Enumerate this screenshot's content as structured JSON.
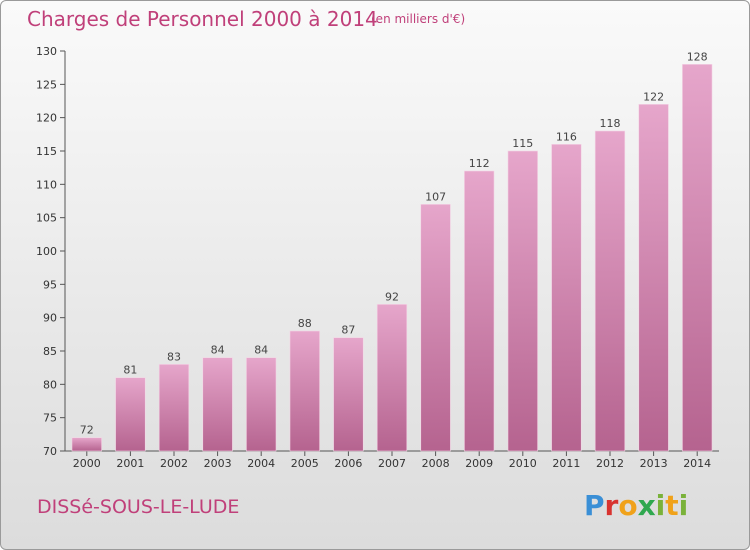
{
  "header": {
    "title": "Charges de Personnel 2000 à 2014",
    "subtitle": "(en milliers d'€)"
  },
  "footer": {
    "commune": "DISSé-SOUS-LE-LUDE",
    "logo": "Proxiti"
  },
  "colors": {
    "accent": "#c0407a",
    "bar_light": "#e6a6cb",
    "bar_dark": "#b5638f"
  },
  "chart_data": {
    "type": "bar",
    "title": "Charges de Personnel 2000 à 2014",
    "subtitle": "(en milliers d'€)",
    "xlabel": "",
    "ylabel": "",
    "categories": [
      "2000",
      "2001",
      "2002",
      "2003",
      "2004",
      "2005",
      "2006",
      "2007",
      "2008",
      "2009",
      "2010",
      "2011",
      "2012",
      "2013",
      "2014"
    ],
    "values": [
      72,
      81,
      83,
      84,
      84,
      88,
      87,
      92,
      107,
      112,
      115,
      116,
      118,
      122,
      128
    ],
    "ylim": [
      70,
      130
    ],
    "yticks": [
      70,
      75,
      80,
      85,
      90,
      95,
      100,
      105,
      110,
      115,
      120,
      125,
      130
    ],
    "grid": false,
    "legend": "none"
  }
}
